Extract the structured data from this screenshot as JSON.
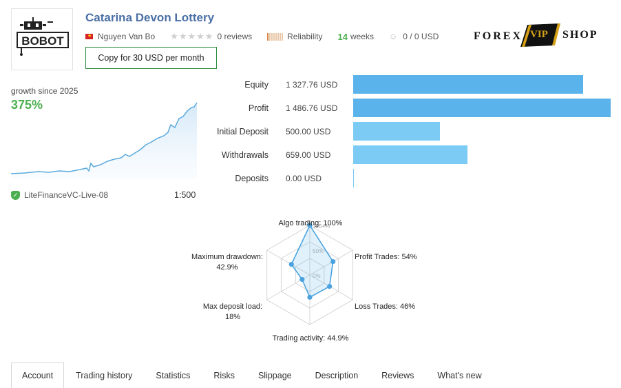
{
  "header": {
    "title": "Catarina Devon Lottery",
    "author": "Nguyen Van Bo",
    "reviews": "0 reviews",
    "reliability": "Reliability",
    "weeks_num": "14",
    "weeks_label": "weeks",
    "subscribers": "0 / 0 USD",
    "copy_button": "Copy for 30 USD per month",
    "logo_text": "BOBOT",
    "brand_forex": "FOREX",
    "brand_vip": "VIP",
    "brand_shop": "SHOP"
  },
  "growth": {
    "label": "growth since 2025",
    "value": "375%",
    "broker": "LiteFinanceVC-Live-08",
    "leverage": "1:500"
  },
  "stats": [
    {
      "label": "Equity",
      "value": "1 327.76 USD",
      "amount": 1327.76
    },
    {
      "label": "Profit",
      "value": "1 486.76 USD",
      "amount": 1486.76
    },
    {
      "label": "Initial Deposit",
      "value": "500.00 USD",
      "amount": 500.0
    },
    {
      "label": "Withdrawals",
      "value": "659.00 USD",
      "amount": 659.0
    },
    {
      "label": "Deposits",
      "value": "0.00 USD",
      "amount": 0
    }
  ],
  "radar": {
    "top": "Algo trading: 100%",
    "upper_right": "Profit Trades: 54%",
    "lower_right": "Loss Trades: 46%",
    "bottom": "Trading activity: 44.9%",
    "lower_left_1": "Max deposit load:",
    "lower_left_2": "18%",
    "upper_left_1": "Maximum drawdown:",
    "upper_left_2": "42.9%",
    "ring_100": "100+%",
    "ring_50": "50%",
    "ring_0": "0%",
    "values": [
      100,
      54,
      46,
      44.9,
      18,
      42.9
    ]
  },
  "tabs": [
    "Account",
    "Trading history",
    "Statistics",
    "Risks",
    "Slippage",
    "Description",
    "Reviews",
    "What's new"
  ],
  "colors": {
    "accent_green": "#4caf50",
    "title_blue": "#4a6fa5",
    "bar_dark": "#5bb3ec",
    "bar_light": "#7ccbf4"
  }
}
